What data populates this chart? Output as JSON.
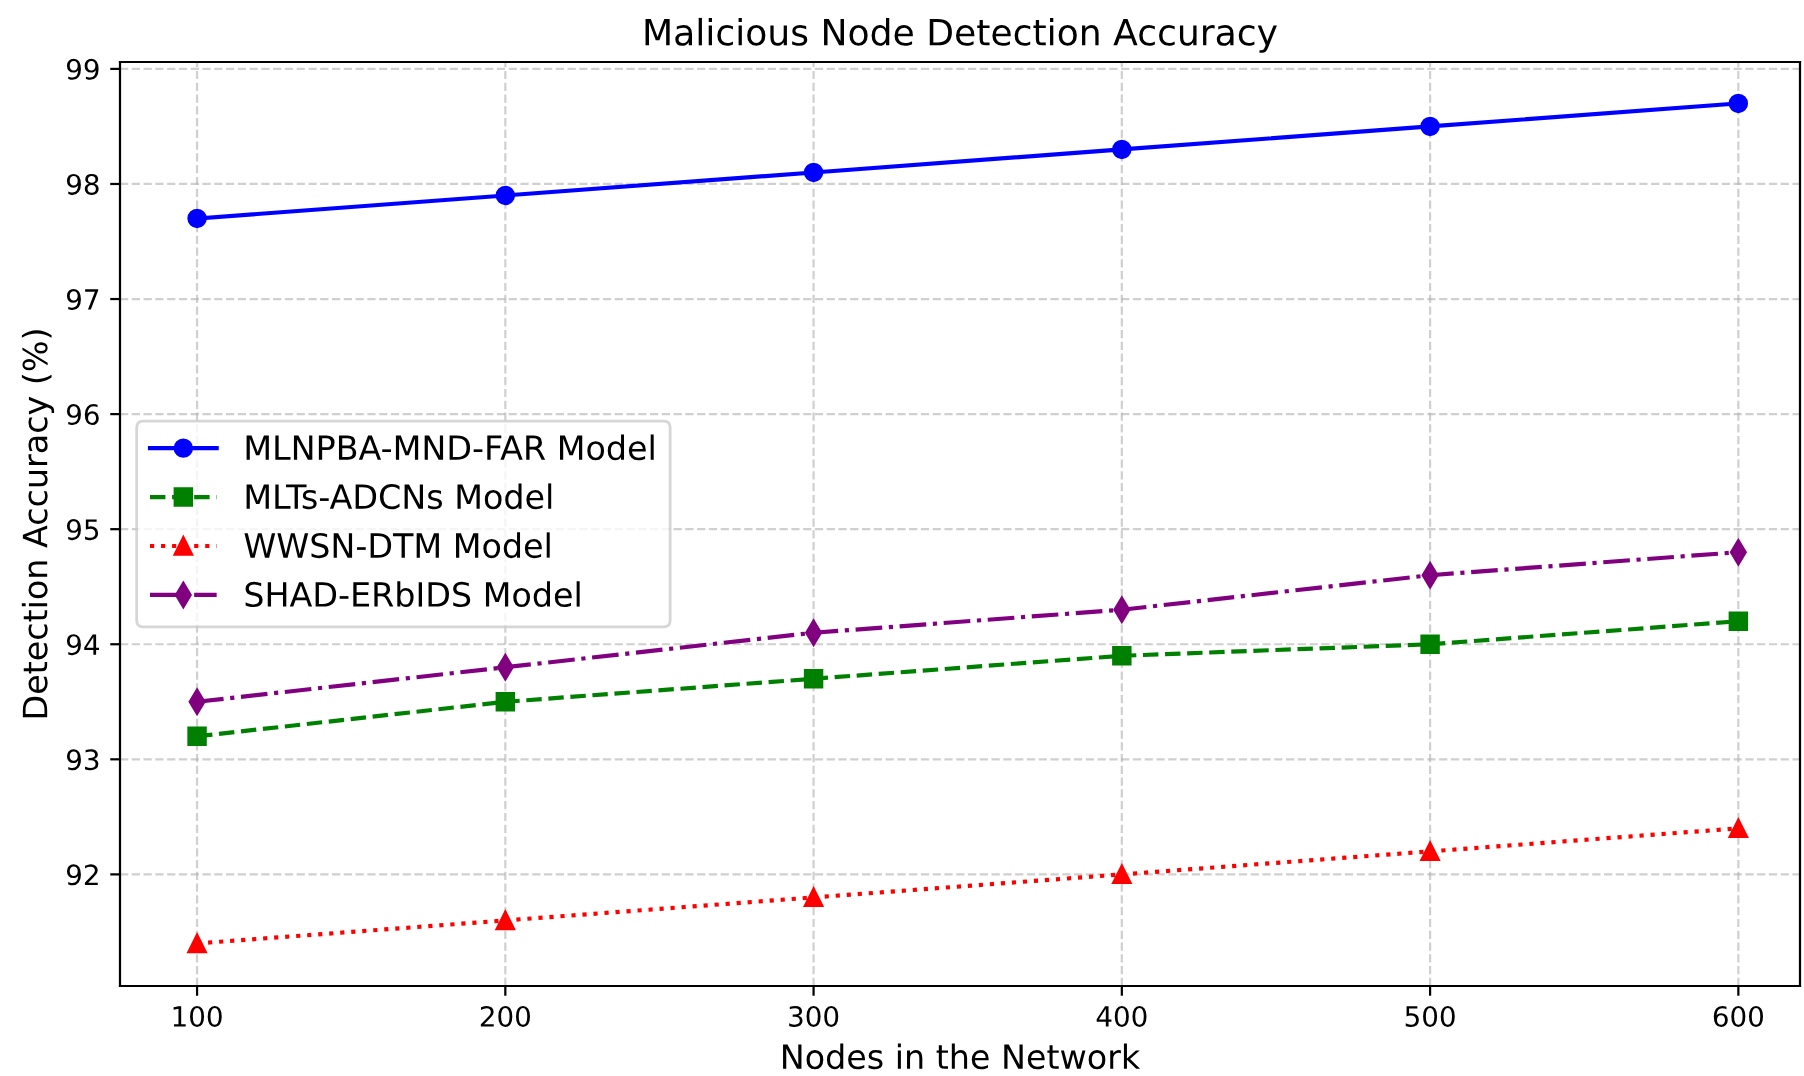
{
  "chart_data": {
    "type": "line",
    "title": "Malicious Node Detection Accuracy",
    "xlabel": "Nodes in the Network",
    "ylabel": "Detection Accuracy (%)",
    "x": [
      100,
      200,
      300,
      400,
      500,
      600
    ],
    "series": [
      {
        "name": "MLNPBA-MND-FAR Model",
        "color": "#0000ff",
        "marker": "circle",
        "line_style": "solid",
        "values": [
          97.7,
          97.9,
          98.1,
          98.3,
          98.5,
          98.7
        ]
      },
      {
        "name": "MLTs-ADCNs Model",
        "color": "#008000",
        "marker": "square",
        "line_style": "dashed",
        "values": [
          93.2,
          93.5,
          93.7,
          93.9,
          94.0,
          94.2
        ]
      },
      {
        "name": "WWSN-DTM Model",
        "color": "#ff0000",
        "marker": "triangle",
        "line_style": "dotted",
        "values": [
          91.4,
          91.6,
          91.8,
          92.0,
          92.2,
          92.4
        ]
      },
      {
        "name": "SHAD-ERbIDS Model",
        "color": "#800080",
        "marker": "diamond",
        "line_style": "dashdot",
        "values": [
          93.5,
          93.8,
          94.1,
          94.3,
          94.6,
          94.8
        ]
      }
    ],
    "xlim": [
      75,
      620
    ],
    "xticks": [
      100,
      200,
      300,
      400,
      500,
      600
    ],
    "ylim": [
      91.03,
      99.06
    ],
    "yticks": [
      92,
      93,
      94,
      95,
      96,
      97,
      98,
      99
    ],
    "grid": true,
    "legend": "center left"
  }
}
